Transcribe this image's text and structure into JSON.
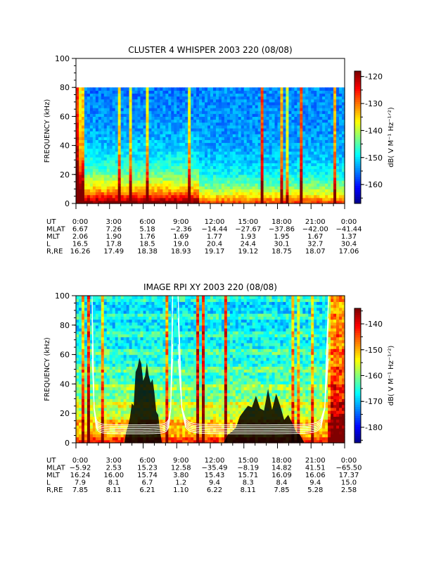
{
  "chart_data": [
    {
      "type": "heatmap",
      "title": "CLUSTER 4 WHISPER 2003 220 (08/08)",
      "ylabel": "FREQUENCY (kHz)",
      "yticks": [
        "0",
        "20",
        "40",
        "60",
        "80",
        "100"
      ],
      "ylim": [
        0,
        100
      ],
      "data_max_khz": 80,
      "colorbar_label": "dB( V M⁻¹ Hz⁻¹ᐟ²)",
      "colorbar_ticks": [
        "-120",
        "-130",
        "-140",
        "-150",
        "-160"
      ],
      "colorbar_range": [
        -167,
        -118
      ],
      "ephemeris": {
        "labels": [
          "UT",
          "MLAT",
          "MLT",
          "L",
          "R,RE"
        ],
        "UT": [
          "0:00",
          "3:00",
          "6:00",
          "9:00",
          "12:00",
          "15:00",
          "18:00",
          "21:00",
          "0:00"
        ],
        "MLAT": [
          "6.67",
          "7.26",
          "5.18",
          "−2.36",
          "−14.44",
          "−27.67",
          "−37.86",
          "−42.00",
          "−41.44"
        ],
        "MLT": [
          "2.06",
          "1.90",
          "1.76",
          "1.69",
          "1.77",
          "1.93",
          "1.95",
          "1.67",
          "1.37"
        ],
        "L": [
          "16.5",
          "17.8",
          "18.5",
          "19.0",
          "20.4",
          "24.4",
          "30.1",
          "32.7",
          "30.4"
        ],
        "R,RE": [
          "16.26",
          "17.49",
          "18.38",
          "18.93",
          "19.17",
          "19.12",
          "18.75",
          "18.07",
          "17.06"
        ]
      }
    },
    {
      "type": "heatmap",
      "title": "IMAGE RPI XY 2003 220 (08/08)",
      "ylabel": "FREQUENCY (kHz)",
      "yticks": [
        "0",
        "20",
        "40",
        "60",
        "80",
        "100"
      ],
      "ylim": [
        0,
        100
      ],
      "data_max_khz": 100,
      "colorbar_label": "dB( V M⁻¹ Hz⁻¹ᐟ²)",
      "colorbar_ticks": [
        "-140",
        "-150",
        "-160",
        "-170",
        "-180"
      ],
      "colorbar_range": [
        -186,
        -134
      ],
      "ephemeris": {
        "labels": [
          "UT",
          "MLAT",
          "MLT",
          "L",
          "R,RE"
        ],
        "UT": [
          "0:00",
          "3:00",
          "6:00",
          "9:00",
          "12:00",
          "15:00",
          "18:00",
          "21:00",
          "0:00"
        ],
        "MLAT": [
          "−5.92",
          "2.53",
          "15.23",
          "12.58",
          "−35.49",
          "−8.19",
          "14.82",
          "41.51",
          "−65.50"
        ],
        "MLT": [
          "16.24",
          "16.00",
          "15.74",
          "3.80",
          "15.43",
          "15.71",
          "16.09",
          "16.06",
          "17.37"
        ],
        "L": [
          "7.9",
          "8.1",
          "6.7",
          "1.2",
          "9.4",
          "8.3",
          "8.4",
          "9.4",
          "15.0"
        ],
        "R,RE": [
          "7.85",
          "8.11",
          "6.21",
          "1.10",
          "6.22",
          "8.11",
          "7.85",
          "5.28",
          "2.58"
        ]
      }
    }
  ]
}
